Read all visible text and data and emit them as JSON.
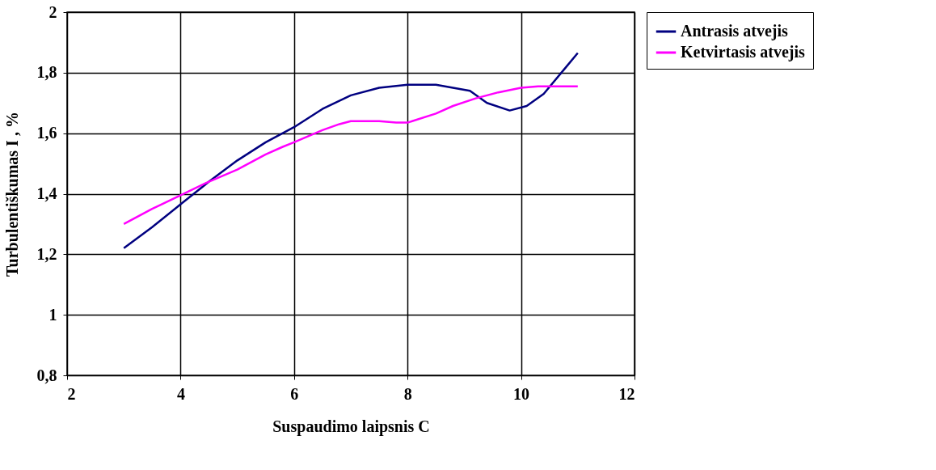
{
  "chart_data": {
    "type": "line",
    "xlabel": "Suspaudimo laipsnis C",
    "ylabel": "Turbulentiškumas I , %",
    "xlim": [
      2,
      12
    ],
    "xticks": [
      2,
      4,
      6,
      8,
      10,
      12
    ],
    "ylim": [
      0.8,
      2
    ],
    "yticks": [
      {
        "value": 0.8,
        "label": "0,8"
      },
      1,
      {
        "value": 1.2,
        "label": "1,2"
      },
      {
        "value": 1.4,
        "label": "1,4"
      },
      {
        "value": 1.6,
        "label": "1,6"
      },
      {
        "value": 1.8,
        "label": "1,8"
      },
      2
    ],
    "grid": true,
    "legend": "right",
    "marker": "none",
    "line_style": "solid",
    "series": [
      {
        "name": "Antrasis atvejis",
        "color": "#000080",
        "x": [
          3,
          3.5,
          4,
          4.5,
          5,
          5.5,
          6,
          6.5,
          7,
          7.5,
          8,
          8.5,
          9.1,
          9.4,
          9.8,
          10.1,
          10.4,
          10.8,
          11
        ],
        "values": [
          1.22,
          1.29,
          1.365,
          1.44,
          1.51,
          1.57,
          1.62,
          1.68,
          1.725,
          1.75,
          1.76,
          1.76,
          1.74,
          1.7,
          1.675,
          1.69,
          1.73,
          1.82,
          1.865
        ]
      },
      {
        "name": "Ketvirtasis atvejis",
        "color": "#ff00ff",
        "x": [
          3,
          3.5,
          4,
          4.5,
          5,
          5.5,
          5.8,
          6,
          6.5,
          6.8,
          7,
          7.5,
          7.8,
          8,
          8.5,
          8.8,
          9.2,
          9.6,
          10,
          10.3,
          11
        ],
        "values": [
          1.3,
          1.35,
          1.395,
          1.44,
          1.48,
          1.53,
          1.555,
          1.57,
          1.61,
          1.63,
          1.64,
          1.64,
          1.635,
          1.635,
          1.665,
          1.69,
          1.715,
          1.735,
          1.75,
          1.755,
          1.755
        ]
      }
    ]
  }
}
